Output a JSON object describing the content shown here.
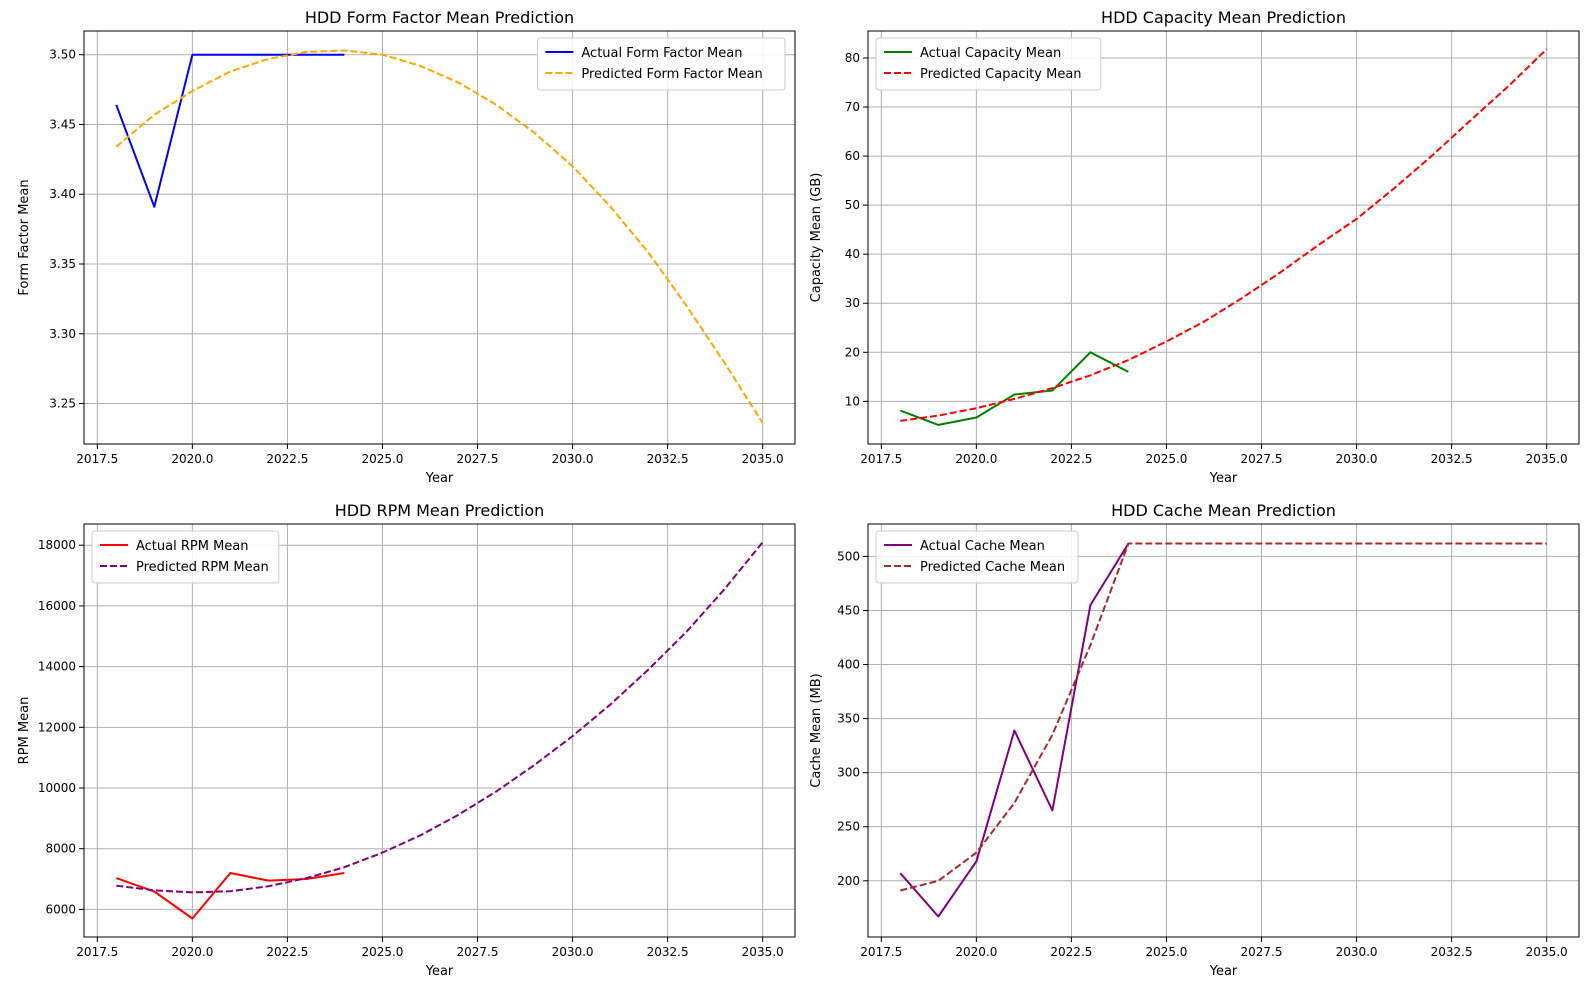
{
  "chart_data": [
    {
      "type": "line",
      "title": "HDD Form Factor Mean Prediction",
      "xlabel": "Year",
      "ylabel": "Form Factor Mean",
      "xlim": [
        2017.15,
        2035.85
      ],
      "ylim": [
        3.221,
        3.517
      ],
      "xticks": [
        2017.5,
        2020.0,
        2022.5,
        2025.0,
        2027.5,
        2030.0,
        2032.5,
        2035.0
      ],
      "yticks": [
        3.25,
        3.3,
        3.35,
        3.4,
        3.45,
        3.5
      ],
      "xtick_labels": [
        "2017.5",
        "2020.0",
        "2022.5",
        "2025.0",
        "2027.5",
        "2030.0",
        "2032.5",
        "2035.0"
      ],
      "ytick_labels": [
        "3.25",
        "3.30",
        "3.35",
        "3.40",
        "3.45",
        "3.50"
      ],
      "grid": true,
      "legend_position": "upper right",
      "series": [
        {
          "name": "Actual Form Factor Mean",
          "color": "#0000ff",
          "style": "solid",
          "x": [
            2018,
            2019,
            2020,
            2021,
            2022,
            2023,
            2024
          ],
          "y": [
            3.464,
            3.391,
            3.5,
            3.5,
            3.5,
            3.5,
            3.5
          ]
        },
        {
          "name": "Predicted Form Factor Mean",
          "color": "#ffa500",
          "style": "dashed",
          "x": [
            2018,
            2019,
            2020,
            2021,
            2022,
            2023,
            2024,
            2025,
            2026,
            2027,
            2028,
            2029,
            2030,
            2031,
            2032,
            2033,
            2034,
            2035
          ],
          "y": [
            3.434,
            3.457,
            3.474,
            3.488,
            3.497,
            3.502,
            3.503,
            3.5,
            3.492,
            3.48,
            3.464,
            3.444,
            3.42,
            3.391,
            3.358,
            3.32,
            3.279,
            3.236
          ]
        }
      ]
    },
    {
      "type": "line",
      "title": "HDD Capacity Mean Prediction",
      "xlabel": "Year",
      "ylabel": "Capacity Mean (GB)",
      "xlim": [
        2017.15,
        2035.85
      ],
      "ylim": [
        1.3,
        85.5
      ],
      "xticks": [
        2017.5,
        2020.0,
        2022.5,
        2025.0,
        2027.5,
        2030.0,
        2032.5,
        2035.0
      ],
      "yticks": [
        10,
        20,
        30,
        40,
        50,
        60,
        70,
        80
      ],
      "xtick_labels": [
        "2017.5",
        "2020.0",
        "2022.5",
        "2025.0",
        "2027.5",
        "2030.0",
        "2032.5",
        "2035.0"
      ],
      "ytick_labels": [
        "10",
        "20",
        "30",
        "40",
        "50",
        "60",
        "70",
        "80"
      ],
      "grid": true,
      "legend_position": "upper left",
      "series": [
        {
          "name": "Actual Capacity Mean",
          "color": "#008000",
          "style": "solid",
          "x": [
            2018,
            2019,
            2020,
            2021,
            2022,
            2023,
            2024
          ],
          "y": [
            8.1,
            5.2,
            6.7,
            11.4,
            12.2,
            20.0,
            16.0
          ]
        },
        {
          "name": "Predicted Capacity Mean",
          "color": "#ff0000",
          "style": "dashed",
          "x": [
            2018,
            2019,
            2020,
            2021,
            2022,
            2023,
            2024,
            2025,
            2026,
            2027,
            2028,
            2029,
            2030,
            2031,
            2032,
            2033,
            2034,
            2035
          ],
          "y": [
            6.0,
            7.1,
            8.6,
            10.5,
            12.7,
            15.3,
            18.4,
            22.2,
            26.3,
            31.1,
            36.3,
            41.9,
            47.2,
            53.5,
            60.2,
            67.3,
            74.3,
            81.8
          ]
        }
      ]
    },
    {
      "type": "line",
      "title": "HDD RPM Mean Prediction",
      "xlabel": "Year",
      "ylabel": "RPM Mean",
      "xlim": [
        2017.15,
        2035.85
      ],
      "ylim": [
        5090,
        18700
      ],
      "xticks": [
        2017.5,
        2020.0,
        2022.5,
        2025.0,
        2027.5,
        2030.0,
        2032.5,
        2035.0
      ],
      "yticks": [
        6000,
        8000,
        10000,
        12000,
        14000,
        16000,
        18000
      ],
      "xtick_labels": [
        "2017.5",
        "2020.0",
        "2022.5",
        "2025.0",
        "2027.5",
        "2030.0",
        "2032.5",
        "2035.0"
      ],
      "ytick_labels": [
        "6000",
        "8000",
        "10000",
        "12000",
        "14000",
        "16000",
        "18000"
      ],
      "grid": true,
      "legend_position": "upper left",
      "series": [
        {
          "name": "Actual RPM Mean",
          "color": "#ff0000",
          "style": "solid",
          "x": [
            2018,
            2019,
            2020,
            2021,
            2022,
            2023,
            2024
          ],
          "y": [
            7030,
            6590,
            5700,
            7200,
            6950,
            7000,
            7200
          ]
        },
        {
          "name": "Predicted RPM Mean",
          "color": "#800080",
          "style": "dashed",
          "x": [
            2018,
            2019,
            2020,
            2021,
            2022,
            2023,
            2024,
            2025,
            2026,
            2027,
            2028,
            2029,
            2030,
            2031,
            2032,
            2033,
            2034,
            2035
          ],
          "y": [
            6780,
            6630,
            6560,
            6600,
            6760,
            7030,
            7390,
            7870,
            8440,
            9120,
            9890,
            10760,
            11710,
            12760,
            13910,
            15150,
            16560,
            18100
          ]
        }
      ]
    },
    {
      "type": "line",
      "title": "HDD Cache Mean Prediction",
      "xlabel": "Year",
      "ylabel": "Cache Mean (MB)",
      "xlim": [
        2017.15,
        2035.85
      ],
      "ylim": [
        148,
        530
      ],
      "xticks": [
        2017.5,
        2020.0,
        2022.5,
        2025.0,
        2027.5,
        2030.0,
        2032.5,
        2035.0
      ],
      "yticks": [
        200,
        250,
        300,
        350,
        400,
        450,
        500
      ],
      "xtick_labels": [
        "2017.5",
        "2020.0",
        "2022.5",
        "2025.0",
        "2027.5",
        "2030.0",
        "2032.5",
        "2035.0"
      ],
      "ytick_labels": [
        "200",
        "250",
        "300",
        "350",
        "400",
        "450",
        "500"
      ],
      "grid": true,
      "legend_position": "upper left",
      "series": [
        {
          "name": "Actual Cache Mean",
          "color": "#800080",
          "style": "solid",
          "x": [
            2018,
            2019,
            2020,
            2021,
            2022,
            2023,
            2024
          ],
          "y": [
            207,
            167,
            218,
            339,
            265,
            455,
            512
          ]
        },
        {
          "name": "Predicted Cache Mean",
          "color": "#a52a2a",
          "style": "dashed",
          "x": [
            2018,
            2019,
            2020,
            2021,
            2022,
            2023,
            2024,
            2025,
            2026,
            2027,
            2028,
            2029,
            2030,
            2031,
            2032,
            2033,
            2034,
            2035
          ],
          "y": [
            191,
            200,
            226,
            272,
            335,
            418,
            512,
            512,
            512,
            512,
            512,
            512,
            512,
            512,
            512,
            512,
            512,
            512
          ]
        }
      ]
    }
  ]
}
